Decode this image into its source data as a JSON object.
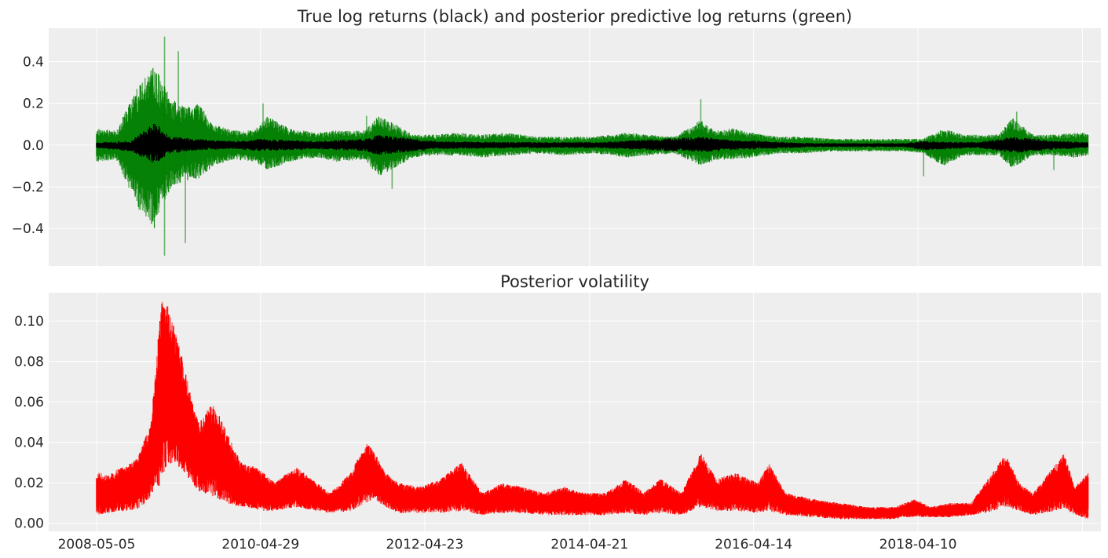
{
  "chart_data": [
    {
      "type": "line",
      "title": "True log returns (black) and posterior predictive log returns (green)",
      "xlabel": "",
      "ylabel": "",
      "ylim": [
        -0.58,
        0.56
      ],
      "yticks": [
        0.4,
        0.2,
        0.0,
        -0.2,
        -0.4
      ],
      "ytick_labels": [
        "0.4",
        "0.2",
        "0.0",
        "−0.2",
        "−0.4"
      ],
      "grid": true,
      "background": "#eeeeee",
      "series": [
        {
          "role": "posterior predictive envelope",
          "color": "#008000",
          "x": [
            "2008-05-05",
            "2008-08-01",
            "2008-11-01",
            "2009-01-15",
            "2009-04-01",
            "2009-06-01",
            "2009-08-01",
            "2009-10-01",
            "2010-01-01",
            "2010-04-01",
            "2010-06-01",
            "2010-09-01",
            "2011-01-01",
            "2011-04-01",
            "2011-08-01",
            "2011-10-01",
            "2011-12-01",
            "2012-03-01",
            "2012-06-01",
            "2012-10-01",
            "2013-01-01",
            "2013-05-01",
            "2013-09-01",
            "2014-01-01",
            "2014-05-01",
            "2014-08-01",
            "2014-10-01",
            "2015-01-01",
            "2015-05-01",
            "2015-08-25",
            "2015-11-01",
            "2016-01-15",
            "2016-04-01",
            "2016-08-01",
            "2016-12-01",
            "2017-04-01",
            "2017-08-01",
            "2017-12-01",
            "2018-02-10",
            "2018-05-01",
            "2018-08-01",
            "2018-11-01",
            "2019-01-01",
            "2019-04-01",
            "2019-06-01",
            "2019-09-01",
            "2019-12-01",
            "2020-03-01",
            "2020-05-01"
          ],
          "upper": [
            0.08,
            0.07,
            0.28,
            0.38,
            0.22,
            0.18,
            0.2,
            0.1,
            0.07,
            0.07,
            0.14,
            0.08,
            0.06,
            0.07,
            0.07,
            0.14,
            0.11,
            0.05,
            0.05,
            0.06,
            0.05,
            0.06,
            0.04,
            0.04,
            0.04,
            0.05,
            0.06,
            0.05,
            0.04,
            0.12,
            0.07,
            0.08,
            0.06,
            0.04,
            0.04,
            0.03,
            0.03,
            0.03,
            0.03,
            0.03,
            0.08,
            0.05,
            0.05,
            0.05,
            0.13,
            0.05,
            0.05,
            0.06,
            0.06
          ],
          "lower": [
            -0.08,
            -0.07,
            -0.3,
            -0.4,
            -0.2,
            -0.17,
            -0.16,
            -0.1,
            -0.07,
            -0.08,
            -0.12,
            -0.08,
            -0.06,
            -0.08,
            -0.07,
            -0.15,
            -0.12,
            -0.06,
            -0.05,
            -0.05,
            -0.06,
            -0.05,
            -0.04,
            -0.05,
            -0.04,
            -0.05,
            -0.06,
            -0.05,
            -0.04,
            -0.1,
            -0.07,
            -0.07,
            -0.06,
            -0.04,
            -0.04,
            -0.03,
            -0.03,
            -0.03,
            -0.03,
            -0.04,
            -0.1,
            -0.05,
            -0.05,
            -0.05,
            -0.11,
            -0.05,
            -0.05,
            -0.06,
            -0.05
          ],
          "spikes": [
            {
              "x": "2009-03-01",
              "y": 0.52
            },
            {
              "x": "2009-03-01",
              "y": -0.53
            },
            {
              "x": "2009-05-01",
              "y": 0.45
            },
            {
              "x": "2009-06-01",
              "y": -0.47
            },
            {
              "x": "2010-05-10",
              "y": 0.2
            },
            {
              "x": "2011-08-10",
              "y": 0.14
            },
            {
              "x": "2011-12-01",
              "y": -0.21
            },
            {
              "x": "2015-08-25",
              "y": 0.22
            },
            {
              "x": "2018-05-05",
              "y": -0.15
            },
            {
              "x": "2019-06-20",
              "y": 0.16
            },
            {
              "x": "2019-12-01",
              "y": -0.12
            }
          ]
        },
        {
          "role": "true log returns",
          "color": "#000000",
          "x": [
            "2008-05-05",
            "2008-10-01",
            "2009-01-15",
            "2009-04-01",
            "2009-08-01",
            "2010-01-01",
            "2010-05-01",
            "2011-01-01",
            "2011-08-01",
            "2011-10-01",
            "2012-06-01",
            "2013-06-01",
            "2014-06-01",
            "2015-08-25",
            "2016-01-15",
            "2017-01-01",
            "2018-01-01",
            "2018-02-10",
            "2018-05-01",
            "2019-01-01",
            "2019-06-01",
            "2020-01-01",
            "2020-05-01"
          ],
          "upper": [
            0.015,
            0.02,
            0.11,
            0.04,
            0.03,
            0.02,
            0.03,
            0.02,
            0.03,
            0.05,
            0.02,
            0.015,
            0.015,
            0.04,
            0.025,
            0.01,
            0.01,
            0.01,
            0.02,
            0.015,
            0.04,
            0.02,
            0.015
          ],
          "lower": [
            -0.015,
            -0.03,
            -0.09,
            -0.04,
            -0.025,
            -0.02,
            -0.03,
            -0.02,
            -0.03,
            -0.05,
            -0.02,
            -0.015,
            -0.015,
            -0.035,
            -0.025,
            -0.01,
            -0.01,
            -0.01,
            -0.025,
            -0.015,
            -0.04,
            -0.02,
            -0.015
          ]
        }
      ]
    },
    {
      "type": "line",
      "title": "Posterior volatility",
      "xlabel": "",
      "ylabel": "",
      "ylim": [
        -0.004,
        0.114
      ],
      "yticks": [
        0.0,
        0.02,
        0.04,
        0.06,
        0.08,
        0.1
      ],
      "ytick_labels": [
        "0.00",
        "0.02",
        "0.04",
        "0.06",
        "0.08",
        "0.10"
      ],
      "xticks": [
        "2008-05-05",
        "2010-04-29",
        "2012-04-23",
        "2014-04-21",
        "2016-04-14",
        "2018-04-10"
      ],
      "grid": true,
      "background": "#eeeeee",
      "series": [
        {
          "role": "posterior volatility samples",
          "color": "#ff0000",
          "x": [
            "2008-05-05",
            "2008-06-15",
            "2008-09-01",
            "2008-11-01",
            "2009-01-01",
            "2009-02-15",
            "2009-03-15",
            "2009-05-01",
            "2009-07-01",
            "2009-08-01",
            "2009-10-01",
            "2009-12-01",
            "2010-02-01",
            "2010-04-01",
            "2010-05-15",
            "2010-07-01",
            "2010-10-01",
            "2011-01-01",
            "2011-03-01",
            "2011-06-01",
            "2011-08-10",
            "2011-09-15",
            "2011-11-01",
            "2012-01-01",
            "2012-04-01",
            "2012-07-01",
            "2012-10-01",
            "2013-01-01",
            "2013-04-01",
            "2013-07-01",
            "2013-10-01",
            "2014-01-01",
            "2014-04-01",
            "2014-07-01",
            "2014-10-01",
            "2014-12-15",
            "2015-03-01",
            "2015-06-01",
            "2015-08-25",
            "2015-11-01",
            "2016-02-01",
            "2016-05-01",
            "2016-06-24",
            "2016-09-01",
            "2017-01-01",
            "2017-05-01",
            "2017-09-01",
            "2018-01-01",
            "2018-02-10",
            "2018-04-01",
            "2018-06-01",
            "2018-09-01",
            "2018-12-01",
            "2019-02-01",
            "2019-05-01",
            "2019-07-01",
            "2019-09-01",
            "2019-12-01",
            "2020-01-15",
            "2020-03-01",
            "2020-05-01"
          ],
          "upper": [
            0.026,
            0.024,
            0.028,
            0.032,
            0.05,
            0.11,
            0.108,
            0.09,
            0.06,
            0.05,
            0.06,
            0.045,
            0.03,
            0.028,
            0.025,
            0.02,
            0.028,
            0.02,
            0.015,
            0.025,
            0.04,
            0.035,
            0.025,
            0.02,
            0.018,
            0.022,
            0.03,
            0.015,
            0.02,
            0.018,
            0.015,
            0.018,
            0.015,
            0.015,
            0.022,
            0.015,
            0.022,
            0.015,
            0.035,
            0.022,
            0.025,
            0.02,
            0.03,
            0.015,
            0.012,
            0.01,
            0.008,
            0.008,
            0.01,
            0.012,
            0.008,
            0.01,
            0.01,
            0.02,
            0.034,
            0.02,
            0.015,
            0.028,
            0.035,
            0.018,
            0.025
          ],
          "lower": [
            0.004,
            0.005,
            0.006,
            0.007,
            0.012,
            0.02,
            0.03,
            0.028,
            0.02,
            0.015,
            0.013,
            0.01,
            0.008,
            0.007,
            0.006,
            0.006,
            0.008,
            0.006,
            0.005,
            0.006,
            0.01,
            0.012,
            0.008,
            0.005,
            0.005,
            0.005,
            0.006,
            0.004,
            0.005,
            0.005,
            0.004,
            0.004,
            0.004,
            0.004,
            0.005,
            0.004,
            0.005,
            0.004,
            0.008,
            0.006,
            0.006,
            0.005,
            0.006,
            0.004,
            0.003,
            0.002,
            0.002,
            0.002,
            0.003,
            0.003,
            0.003,
            0.003,
            0.004,
            0.005,
            0.008,
            0.006,
            0.004,
            0.006,
            0.007,
            0.004,
            0.002
          ]
        }
      ]
    }
  ]
}
